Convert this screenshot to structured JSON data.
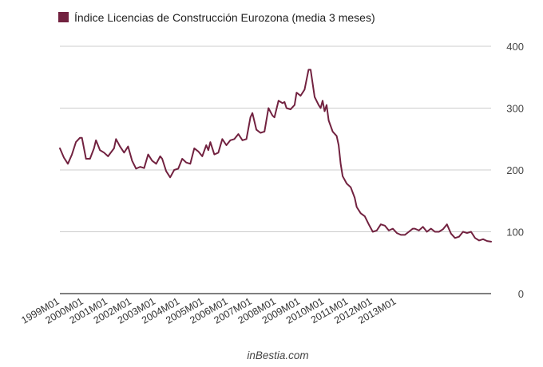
{
  "chart_data": {
    "type": "line",
    "legend": "Índice Licencias de Construcción Eurozona (media 3 meses)",
    "legend_placement": "top-left",
    "series_color": "#722240",
    "grid": true,
    "ylim": [
      0,
      400
    ],
    "yticks": [
      "0",
      "100",
      "200",
      "300",
      "400"
    ],
    "x_labels": [
      "1999M01",
      "2000M01",
      "2001M01",
      "2002M01",
      "2003M01",
      "2004M01",
      "2005M01",
      "2006M01",
      "2007M01",
      "2008M01",
      "2009M01",
      "2010M01",
      "2011M01",
      "2012M01",
      "2013M01"
    ],
    "start_year": 1999,
    "x_range_months": 174,
    "series": [
      {
        "name": "Índice Licencias de Construcción Eurozona (media 3 meses)",
        "anchors": [
          [
            0,
            235
          ],
          [
            2,
            220
          ],
          [
            4,
            210
          ],
          [
            6,
            225
          ],
          [
            8,
            245
          ],
          [
            10,
            252
          ],
          [
            11,
            252
          ],
          [
            13,
            218
          ],
          [
            15,
            218
          ],
          [
            17,
            235
          ],
          [
            18,
            248
          ],
          [
            20,
            232
          ],
          [
            22,
            228
          ],
          [
            24,
            222
          ],
          [
            27,
            235
          ],
          [
            28,
            250
          ],
          [
            30,
            238
          ],
          [
            32,
            228
          ],
          [
            34,
            238
          ],
          [
            36,
            215
          ],
          [
            38,
            202
          ],
          [
            40,
            205
          ],
          [
            42,
            203
          ],
          [
            44,
            225
          ],
          [
            46,
            215
          ],
          [
            48,
            210
          ],
          [
            50,
            222
          ],
          [
            51,
            218
          ],
          [
            53,
            198
          ],
          [
            55,
            188
          ],
          [
            57,
            200
          ],
          [
            59,
            202
          ],
          [
            61,
            218
          ],
          [
            63,
            212
          ],
          [
            65,
            210
          ],
          [
            67,
            235
          ],
          [
            69,
            230
          ],
          [
            71,
            222
          ],
          [
            73,
            240
          ],
          [
            74,
            232
          ],
          [
            75,
            245
          ],
          [
            77,
            225
          ],
          [
            79,
            228
          ],
          [
            81,
            250
          ],
          [
            83,
            240
          ],
          [
            85,
            248
          ],
          [
            87,
            250
          ],
          [
            89,
            258
          ],
          [
            91,
            248
          ],
          [
            93,
            250
          ],
          [
            95,
            285
          ],
          [
            96,
            292
          ],
          [
            98,
            265
          ],
          [
            100,
            260
          ],
          [
            102,
            262
          ],
          [
            104,
            300
          ],
          [
            106,
            288
          ],
          [
            107,
            285
          ],
          [
            109,
            312
          ],
          [
            111,
            308
          ],
          [
            112,
            310
          ],
          [
            113,
            300
          ],
          [
            115,
            298
          ],
          [
            117,
            305
          ],
          [
            118,
            325
          ],
          [
            120,
            320
          ],
          [
            122,
            330
          ],
          [
            124,
            362
          ],
          [
            125,
            362
          ],
          [
            127,
            318
          ],
          [
            129,
            305
          ],
          [
            130,
            300
          ],
          [
            131,
            312
          ],
          [
            132,
            295
          ],
          [
            133,
            305
          ],
          [
            134,
            280
          ],
          [
            136,
            262
          ],
          [
            138,
            255
          ],
          [
            139,
            240
          ],
          [
            140,
            210
          ],
          [
            141,
            190
          ],
          [
            143,
            178
          ],
          [
            145,
            172
          ],
          [
            147,
            155
          ],
          [
            148,
            140
          ],
          [
            150,
            130
          ],
          [
            152,
            125
          ],
          [
            154,
            112
          ],
          [
            156,
            100
          ],
          [
            158,
            102
          ],
          [
            160,
            112
          ],
          [
            162,
            110
          ],
          [
            164,
            102
          ],
          [
            166,
            105
          ],
          [
            168,
            98
          ],
          [
            170,
            95
          ],
          [
            172,
            95
          ],
          [
            174,
            100
          ],
          [
            176,
            105
          ],
          [
            177,
            105
          ],
          [
            179,
            102
          ],
          [
            181,
            108
          ],
          [
            183,
            100
          ],
          [
            185,
            105
          ],
          [
            187,
            100
          ],
          [
            189,
            100
          ],
          [
            191,
            104
          ],
          [
            193,
            112
          ],
          [
            195,
            97
          ],
          [
            197,
            90
          ],
          [
            199,
            92
          ],
          [
            201,
            100
          ],
          [
            203,
            98
          ],
          [
            205,
            100
          ],
          [
            207,
            90
          ],
          [
            209,
            86
          ],
          [
            211,
            88
          ],
          [
            213,
            85
          ],
          [
            215,
            84
          ]
        ]
      }
    ],
    "footer": "inBestia.com"
  }
}
